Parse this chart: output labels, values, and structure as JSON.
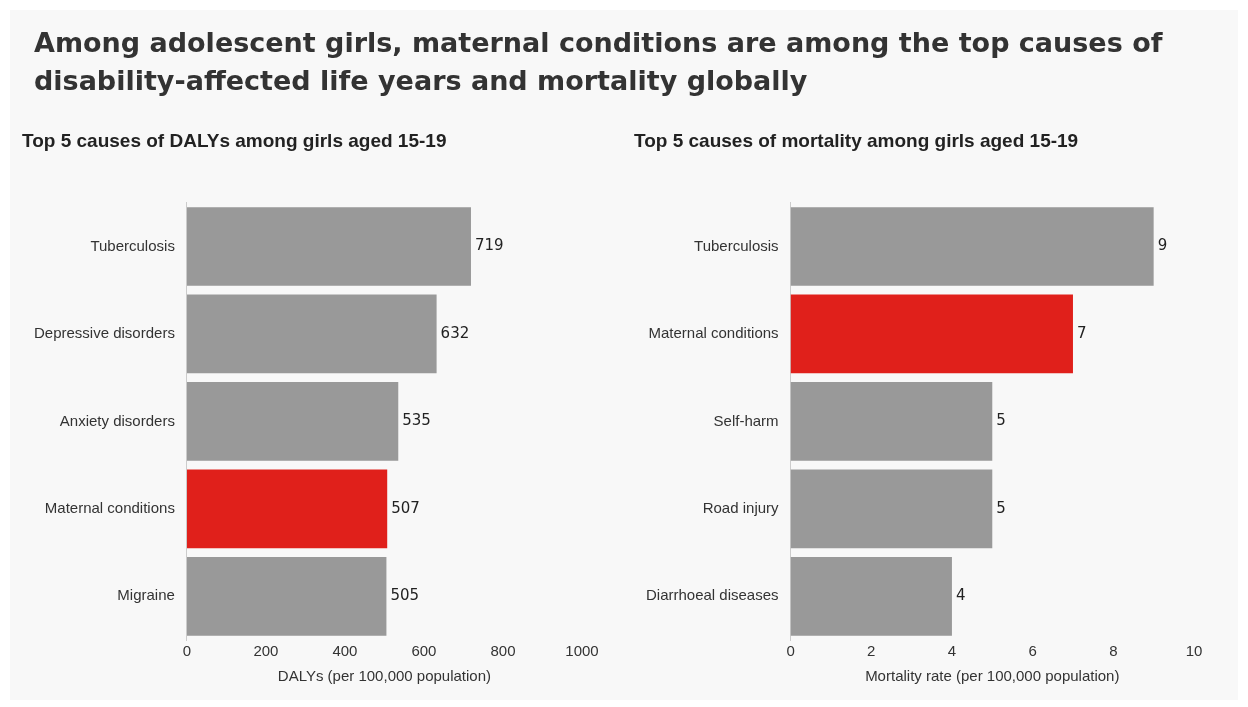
{
  "chart_data": [
    {
      "type": "other",
      "title": "Among adolescent girls, maternal conditions are among the top causes of disability-affected life years and mortality globally"
    },
    {
      "type": "bar",
      "orientation": "horizontal",
      "title": "Top 5 causes of DALYs among girls aged 15-19",
      "xlabel": "DALYs (per 100,000 population)",
      "categories": [
        "Tuberculosis",
        "Depressive disorders",
        "Anxiety disorders",
        "Maternal conditions",
        "Migraine"
      ],
      "values": [
        719,
        632,
        535,
        507,
        505
      ],
      "colors": [
        "#999999",
        "#999999",
        "#999999",
        "#e0201b",
        "#999999"
      ],
      "xlim": [
        0,
        1000
      ],
      "xticks": [
        0,
        200,
        400,
        600,
        800,
        1000
      ],
      "grid": false,
      "legend": false,
      "data_labels": true
    },
    {
      "type": "bar",
      "orientation": "horizontal",
      "title": "Top 5 causes of mortality among girls aged 15-19",
      "xlabel": "Mortality rate (per 100,000 population)",
      "categories": [
        "Tuberculosis",
        "Maternal conditions",
        "Self-harm",
        "Road injury",
        "Diarrhoeal diseases"
      ],
      "values": [
        9,
        7,
        5,
        5,
        4
      ],
      "colors": [
        "#999999",
        "#e0201b",
        "#999999",
        "#999999",
        "#999999"
      ],
      "xlim": [
        0,
        10
      ],
      "xticks": [
        0,
        2,
        4,
        6,
        8,
        10
      ],
      "grid": false,
      "legend": false,
      "data_labels": true
    }
  ]
}
